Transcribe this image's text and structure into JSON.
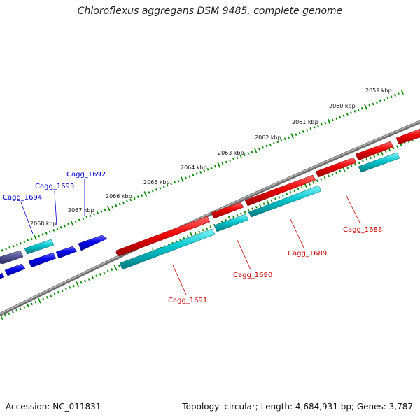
{
  "title": "Chloroflexus aggregans DSM 9485, complete genome",
  "accession": "Accession: NC_011831",
  "summary": "Topology: circular; Length: 4,684,931 bp; Genes: 3,787",
  "colors": {
    "forward_cds": "#ee0000",
    "reverse_cds": "#00c0c8",
    "blue_cds": "#0000ee",
    "purple_cds": "#505090",
    "backbone": "#808080",
    "ticks": "#008800",
    "label_red": "#cc0000",
    "label_blue": "#0000cc"
  },
  "ruler_labels": [
    {
      "kbp": 2059,
      "text": "2059 kbp"
    },
    {
      "kbp": 2060,
      "text": "2060 kbp"
    },
    {
      "kbp": 2061,
      "text": "2061 kbp"
    },
    {
      "kbp": 2062,
      "text": "2062 kbp"
    },
    {
      "kbp": 2063,
      "text": "2063 kbp"
    },
    {
      "kbp": 2064,
      "text": "2064 kbp"
    },
    {
      "kbp": 2065,
      "text": "2065 kbp"
    },
    {
      "kbp": 2066,
      "text": "2066 kbp"
    },
    {
      "kbp": 2067,
      "text": "2067 kbp"
    },
    {
      "kbp": 2068,
      "text": "2068 kbp"
    }
  ],
  "gene_labels": [
    {
      "name": "Cagg_1688",
      "color": "red"
    },
    {
      "name": "Cagg_1689",
      "color": "red"
    },
    {
      "name": "Cagg_1690",
      "color": "red"
    },
    {
      "name": "Cagg_1691",
      "color": "red"
    },
    {
      "name": "Cagg_1692",
      "color": "blue"
    },
    {
      "name": "Cagg_1693",
      "color": "blue"
    },
    {
      "name": "Cagg_1694",
      "color": "blue"
    }
  ]
}
